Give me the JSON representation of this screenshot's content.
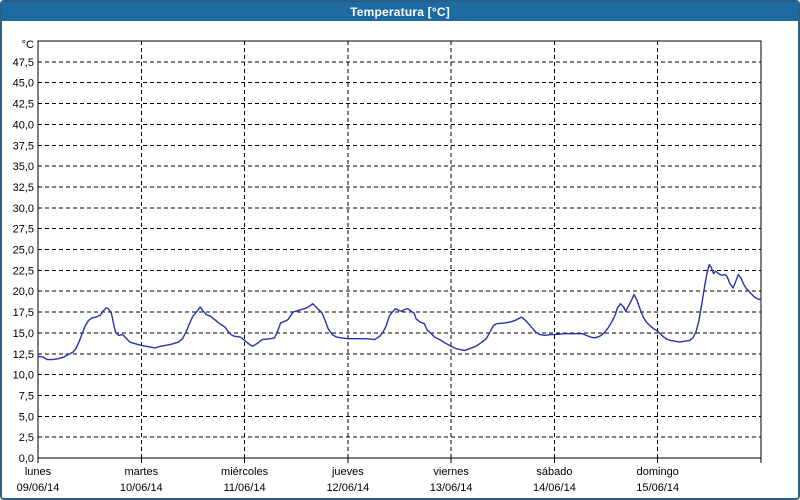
{
  "window": {
    "title": "Temperatura [°C]"
  },
  "colors": {
    "titlebar_background": "#1e6aa3",
    "titlebar_text": "#ffffff",
    "window_border": "#2a5f8c",
    "line": "#2733ae",
    "grid": "#000000",
    "plot_background": "#fffffe"
  },
  "chart_data": {
    "type": "line",
    "title": "Temperatura [°C]",
    "grid": "dashed",
    "legend_position": "none",
    "y_axis": {
      "unit": "°C",
      "min": 0,
      "max": 50,
      "tick_step": 2.5,
      "tick_labels": [
        "0,0",
        "2,5",
        "5,0",
        "7,5",
        "10,0",
        "12,5",
        "15,0",
        "17,5",
        "20,0",
        "22,5",
        "25,0",
        "27,5",
        "30,0",
        "32,5",
        "35,0",
        "37,5",
        "40,0",
        "42,5",
        "45,0",
        "47,5"
      ]
    },
    "x_axis": {
      "days": [
        {
          "name": "lunes",
          "date": "09/06/14"
        },
        {
          "name": "martes",
          "date": "10/06/14"
        },
        {
          "name": "miércoles",
          "date": "11/06/14"
        },
        {
          "name": "jueves",
          "date": "12/06/14"
        },
        {
          "name": "viernes",
          "date": "13/06/14"
        },
        {
          "name": "sábado",
          "date": "14/06/14"
        },
        {
          "name": "domingo",
          "date": "15/06/14"
        }
      ]
    },
    "series": [
      {
        "name": "Temperatura",
        "color": "#2733ae",
        "points": [
          [
            0.0,
            12.2
          ],
          [
            0.05,
            12.1
          ],
          [
            0.09,
            11.8
          ],
          [
            0.14,
            11.8
          ],
          [
            0.19,
            11.9
          ],
          [
            0.25,
            12.1
          ],
          [
            0.29,
            12.4
          ],
          [
            0.34,
            12.7
          ],
          [
            0.37,
            13.2
          ],
          [
            0.4,
            14.0
          ],
          [
            0.43,
            15.0
          ],
          [
            0.46,
            15.9
          ],
          [
            0.49,
            16.5
          ],
          [
            0.52,
            16.8
          ],
          [
            0.56,
            16.9
          ],
          [
            0.6,
            17.1
          ],
          [
            0.63,
            17.6
          ],
          [
            0.66,
            18.0
          ],
          [
            0.68,
            17.9
          ],
          [
            0.71,
            17.4
          ],
          [
            0.73,
            16.2
          ],
          [
            0.75,
            15.1
          ],
          [
            0.78,
            14.7
          ],
          [
            0.82,
            14.8
          ],
          [
            0.85,
            14.4
          ],
          [
            0.89,
            13.9
          ],
          [
            0.94,
            13.7
          ],
          [
            1.0,
            13.5
          ],
          [
            1.04,
            13.4
          ],
          [
            1.09,
            13.3
          ],
          [
            1.13,
            13.2
          ],
          [
            1.19,
            13.4
          ],
          [
            1.28,
            13.6
          ],
          [
            1.36,
            13.9
          ],
          [
            1.4,
            14.3
          ],
          [
            1.44,
            15.3
          ],
          [
            1.47,
            16.2
          ],
          [
            1.5,
            17.0
          ],
          [
            1.54,
            17.6
          ],
          [
            1.57,
            18.1
          ],
          [
            1.6,
            17.6
          ],
          [
            1.63,
            17.2
          ],
          [
            1.67,
            17.0
          ],
          [
            1.71,
            16.6
          ],
          [
            1.76,
            16.1
          ],
          [
            1.81,
            15.7
          ],
          [
            1.84,
            15.2
          ],
          [
            1.87,
            14.8
          ],
          [
            1.9,
            14.6
          ],
          [
            1.96,
            14.5
          ],
          [
            2.0,
            14.1
          ],
          [
            2.05,
            13.6
          ],
          [
            2.08,
            13.4
          ],
          [
            2.13,
            13.8
          ],
          [
            2.17,
            14.2
          ],
          [
            2.25,
            14.3
          ],
          [
            2.29,
            14.4
          ],
          [
            2.32,
            15.2
          ],
          [
            2.35,
            16.2
          ],
          [
            2.39,
            16.4
          ],
          [
            2.42,
            16.6
          ],
          [
            2.47,
            17.5
          ],
          [
            2.52,
            17.7
          ],
          [
            2.58,
            17.9
          ],
          [
            2.63,
            18.2
          ],
          [
            2.66,
            18.5
          ],
          [
            2.7,
            18.0
          ],
          [
            2.75,
            17.4
          ],
          [
            2.78,
            16.5
          ],
          [
            2.81,
            15.5
          ],
          [
            2.85,
            14.8
          ],
          [
            2.89,
            14.5
          ],
          [
            2.94,
            14.4
          ],
          [
            3.0,
            14.3
          ],
          [
            3.09,
            14.3
          ],
          [
            3.18,
            14.3
          ],
          [
            3.26,
            14.2
          ],
          [
            3.31,
            14.6
          ],
          [
            3.34,
            15.1
          ],
          [
            3.37,
            15.8
          ],
          [
            3.4,
            17.0
          ],
          [
            3.43,
            17.5
          ],
          [
            3.46,
            17.9
          ],
          [
            3.49,
            17.7
          ],
          [
            3.52,
            17.6
          ],
          [
            3.55,
            17.8
          ],
          [
            3.58,
            17.9
          ],
          [
            3.61,
            17.6
          ],
          [
            3.64,
            17.4
          ],
          [
            3.66,
            16.7
          ],
          [
            3.7,
            16.3
          ],
          [
            3.74,
            16.1
          ],
          [
            3.77,
            15.3
          ],
          [
            3.8,
            15.0
          ],
          [
            3.84,
            14.5
          ],
          [
            3.89,
            14.2
          ],
          [
            3.94,
            13.8
          ],
          [
            4.0,
            13.4
          ],
          [
            4.05,
            13.1
          ],
          [
            4.09,
            13.0
          ],
          [
            4.13,
            12.9
          ],
          [
            4.18,
            13.1
          ],
          [
            4.24,
            13.4
          ],
          [
            4.3,
            13.9
          ],
          [
            4.34,
            14.3
          ],
          [
            4.38,
            15.2
          ],
          [
            4.41,
            15.9
          ],
          [
            4.44,
            16.1
          ],
          [
            4.52,
            16.2
          ],
          [
            4.57,
            16.3
          ],
          [
            4.62,
            16.5
          ],
          [
            4.68,
            16.9
          ],
          [
            4.72,
            16.5
          ],
          [
            4.77,
            15.8
          ],
          [
            4.82,
            15.1
          ],
          [
            4.86,
            14.8
          ],
          [
            4.91,
            14.7
          ],
          [
            4.96,
            14.8
          ],
          [
            5.0,
            14.8
          ],
          [
            5.1,
            14.9
          ],
          [
            5.2,
            14.9
          ],
          [
            5.27,
            14.9
          ],
          [
            5.31,
            14.7
          ],
          [
            5.35,
            14.5
          ],
          [
            5.39,
            14.4
          ],
          [
            5.44,
            14.6
          ],
          [
            5.48,
            15.0
          ],
          [
            5.52,
            15.6
          ],
          [
            5.55,
            16.2
          ],
          [
            5.59,
            17.2
          ],
          [
            5.61,
            18.0
          ],
          [
            5.64,
            18.5
          ],
          [
            5.67,
            18.1
          ],
          [
            5.69,
            17.6
          ],
          [
            5.72,
            18.3
          ],
          [
            5.75,
            19.0
          ],
          [
            5.77,
            19.6
          ],
          [
            5.8,
            18.9
          ],
          [
            5.83,
            17.8
          ],
          [
            5.86,
            16.9
          ],
          [
            5.89,
            16.3
          ],
          [
            5.93,
            15.8
          ],
          [
            5.96,
            15.5
          ],
          [
            6.0,
            15.2
          ],
          [
            6.04,
            14.7
          ],
          [
            6.08,
            14.3
          ],
          [
            6.12,
            14.1
          ],
          [
            6.17,
            14.0
          ],
          [
            6.21,
            13.9
          ],
          [
            6.26,
            14.0
          ],
          [
            6.31,
            14.1
          ],
          [
            6.34,
            14.4
          ],
          [
            6.37,
            15.1
          ],
          [
            6.4,
            16.5
          ],
          [
            6.42,
            18.0
          ],
          [
            6.44,
            19.5
          ],
          [
            6.46,
            21.0
          ],
          [
            6.48,
            22.3
          ],
          [
            6.5,
            23.2
          ],
          [
            6.52,
            22.8
          ],
          [
            6.54,
            22.1
          ],
          [
            6.56,
            22.4
          ],
          [
            6.59,
            22.1
          ],
          [
            6.62,
            21.9
          ],
          [
            6.65,
            22.0
          ],
          [
            6.67,
            21.8
          ],
          [
            6.7,
            20.9
          ],
          [
            6.73,
            20.4
          ],
          [
            6.75,
            21.0
          ],
          [
            6.78,
            22.0
          ],
          [
            6.81,
            21.5
          ],
          [
            6.83,
            20.9
          ],
          [
            6.86,
            20.3
          ],
          [
            6.89,
            19.9
          ],
          [
            6.92,
            19.5
          ],
          [
            6.95,
            19.2
          ],
          [
            6.98,
            19.0
          ],
          [
            7.0,
            19.1
          ]
        ]
      }
    ]
  }
}
